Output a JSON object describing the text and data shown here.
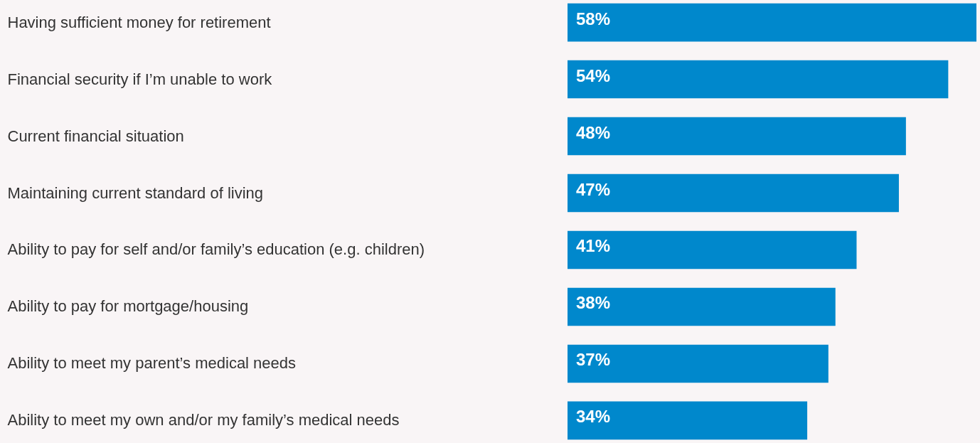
{
  "chart_data": {
    "type": "bar",
    "orientation": "horizontal",
    "categories": [
      "Having sufficient money for retirement",
      "Financial security if I’m unable to work",
      "Current financial situation",
      "Maintaining current standard of living",
      "Ability to pay for self and/or family’s education (e.g. children)",
      "Ability to pay for mortgage/housing",
      "Ability to meet my parent’s medical needs",
      "Ability to meet my own and/or my family’s medical needs"
    ],
    "values": [
      58,
      54,
      48,
      47,
      41,
      38,
      37,
      34
    ],
    "value_labels": [
      "58%",
      "54%",
      "48%",
      "47%",
      "41%",
      "38%",
      "37%",
      "34%"
    ],
    "color": "#0088cc",
    "grid": false
  }
}
